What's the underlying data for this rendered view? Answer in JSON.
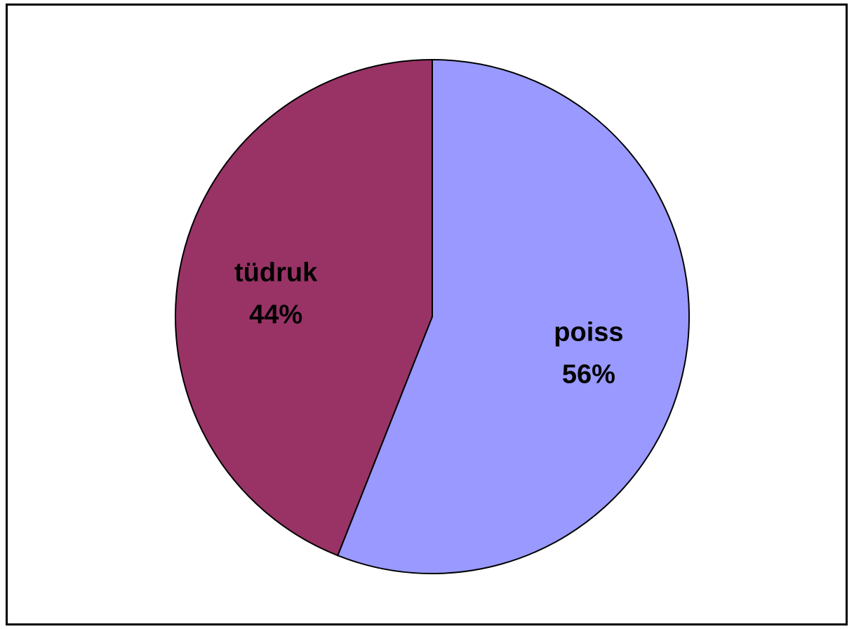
{
  "chart_data": {
    "type": "pie",
    "title": "",
    "slices": [
      {
        "label": "poiss",
        "value": 56,
        "percent_label": "56%",
        "color": "#9999FF"
      },
      {
        "label": "tüdruk",
        "value": 44,
        "percent_label": "44%",
        "color": "#993366"
      }
    ],
    "start": "top",
    "direction": "clockwise",
    "legend": "none"
  }
}
